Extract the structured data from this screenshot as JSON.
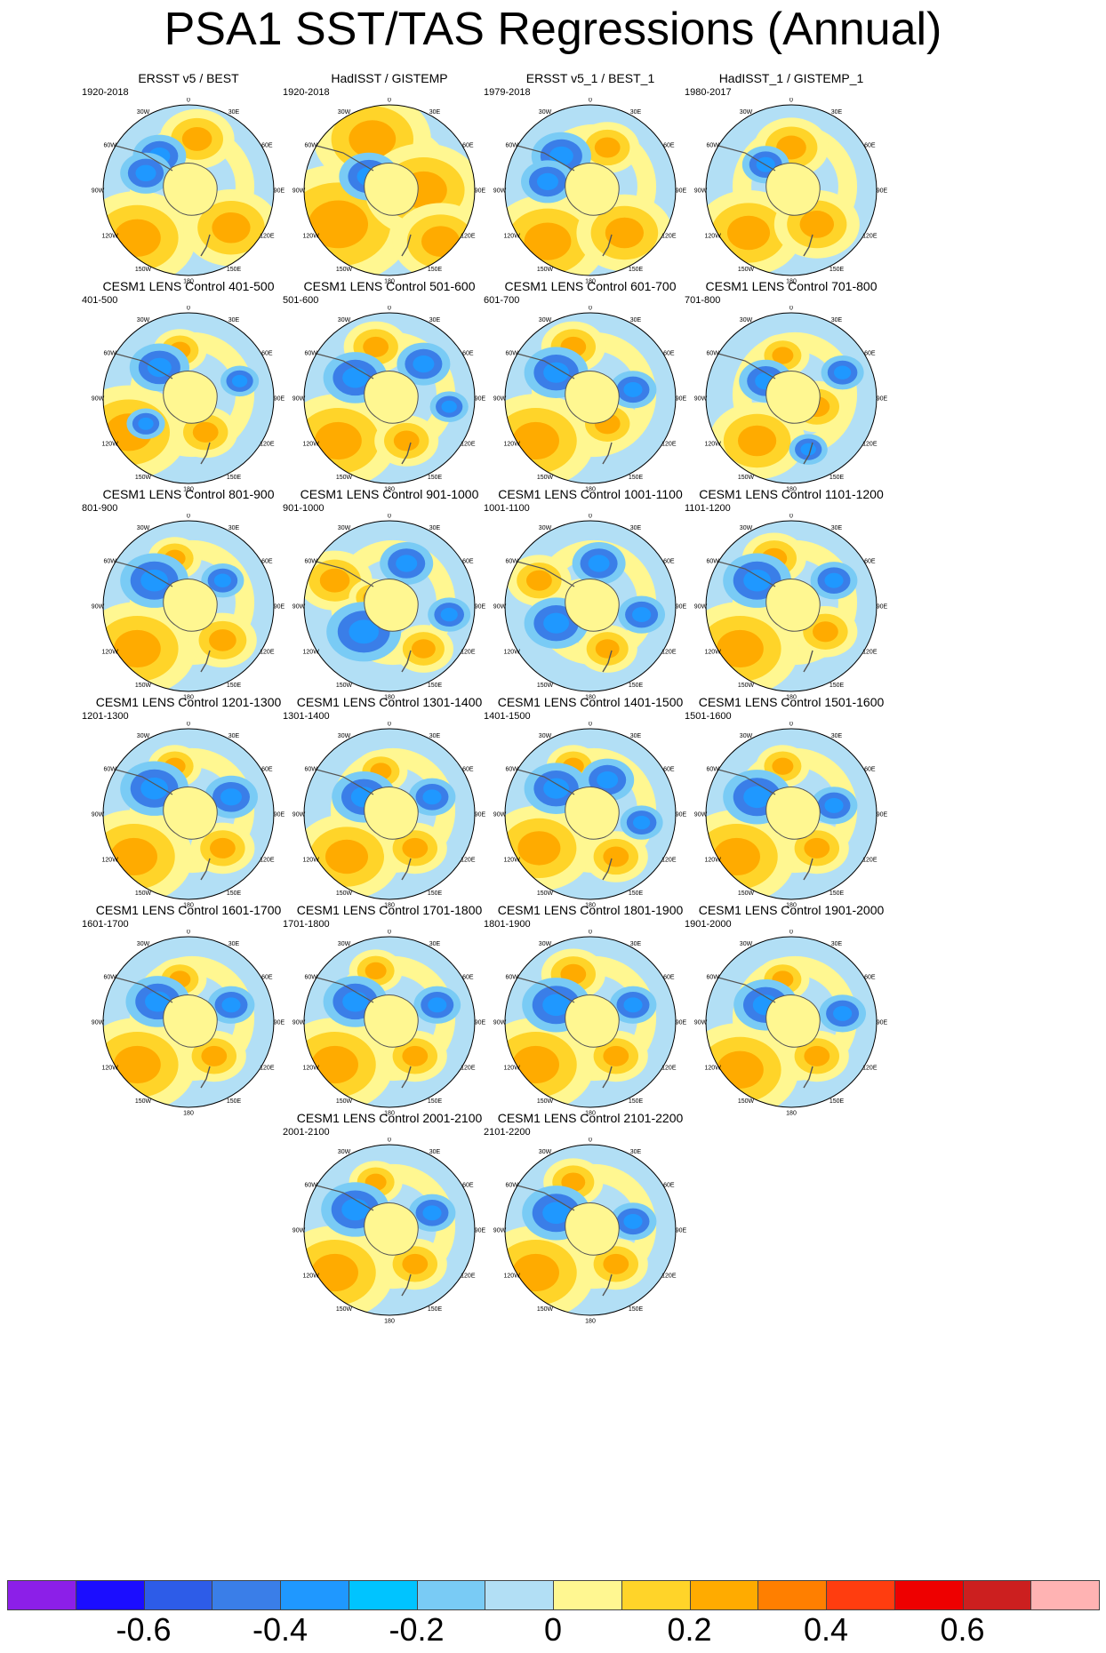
{
  "title": "PSA1 SST/TAS Regressions (Annual)",
  "lon_labels": [
    "0",
    "30E",
    "60E",
    "90E",
    "120E",
    "150E",
    "180",
    "150W",
    "120W",
    "90W",
    "60W",
    "30W"
  ],
  "panels": [
    {
      "title": "ERSST v5 / BEST",
      "period": "1920-2018",
      "lows": [
        [
          0.33,
          0.3,
          0.25
        ],
        [
          0.25,
          0.4,
          0.24
        ]
      ],
      "highs": [
        [
          0.2,
          0.78,
          0.55
        ],
        [
          0.75,
          0.72,
          0.45
        ],
        [
          0.55,
          0.2,
          0.35
        ]
      ]
    },
    {
      "title": "HadISST / GISTEMP",
      "period": "1920-2018",
      "lows": [
        [
          0.38,
          0.42,
          0.28
        ]
      ],
      "highs": [
        [
          0.2,
          0.7,
          0.7
        ],
        [
          0.4,
          0.2,
          0.55
        ],
        [
          0.7,
          0.5,
          0.55
        ],
        [
          0.8,
          0.8,
          0.45
        ]
      ]
    },
    {
      "title": "ERSST v5_1 / BEST_1",
      "period": "1979-2018",
      "lows": [
        [
          0.33,
          0.3,
          0.28
        ],
        [
          0.25,
          0.45,
          0.25
        ]
      ],
      "highs": [
        [
          0.25,
          0.8,
          0.55
        ],
        [
          0.7,
          0.75,
          0.45
        ],
        [
          0.6,
          0.25,
          0.3
        ]
      ]
    },
    {
      "title": "HadISST_1 / GISTEMP_1",
      "period": "1980-2017",
      "lows": [
        [
          0.35,
          0.35,
          0.22
        ]
      ],
      "highs": [
        [
          0.25,
          0.75,
          0.5
        ],
        [
          0.65,
          0.7,
          0.4
        ],
        [
          0.5,
          0.25,
          0.35
        ]
      ]
    },
    {
      "title": "CESM1 LENS Control 401-500",
      "period": "401-500",
      "lows": [
        [
          0.33,
          0.32,
          0.28
        ],
        [
          0.25,
          0.65,
          0.18
        ],
        [
          0.8,
          0.4,
          0.18
        ]
      ],
      "highs": [
        [
          0.15,
          0.7,
          0.55
        ],
        [
          0.45,
          0.22,
          0.25
        ],
        [
          0.6,
          0.7,
          0.3
        ]
      ]
    },
    {
      "title": "CESM1 LENS Control 501-600",
      "period": "501-600",
      "lows": [
        [
          0.3,
          0.38,
          0.3
        ],
        [
          0.7,
          0.3,
          0.25
        ],
        [
          0.85,
          0.55,
          0.18
        ]
      ],
      "highs": [
        [
          0.2,
          0.75,
          0.55
        ],
        [
          0.42,
          0.2,
          0.3
        ],
        [
          0.6,
          0.75,
          0.3
        ]
      ]
    },
    {
      "title": "CESM1 LENS Control 601-700",
      "period": "601-700",
      "lows": [
        [
          0.3,
          0.35,
          0.3
        ],
        [
          0.75,
          0.45,
          0.22
        ]
      ],
      "highs": [
        [
          0.18,
          0.75,
          0.55
        ],
        [
          0.4,
          0.2,
          0.3
        ],
        [
          0.6,
          0.65,
          0.3
        ]
      ]
    },
    {
      "title": "CESM1 LENS Control 701-800",
      "period": "701-800",
      "lows": [
        [
          0.35,
          0.4,
          0.25
        ],
        [
          0.8,
          0.35,
          0.2
        ],
        [
          0.6,
          0.8,
          0.18
        ]
      ],
      "highs": [
        [
          0.3,
          0.75,
          0.45
        ],
        [
          0.45,
          0.25,
          0.25
        ],
        [
          0.65,
          0.55,
          0.3
        ]
      ]
    },
    {
      "title": "CESM1 LENS Control 801-900",
      "period": "801-900",
      "lows": [
        [
          0.3,
          0.35,
          0.32
        ],
        [
          0.7,
          0.35,
          0.2
        ]
      ],
      "highs": [
        [
          0.2,
          0.75,
          0.55
        ],
        [
          0.42,
          0.22,
          0.25
        ],
        [
          0.7,
          0.7,
          0.32
        ]
      ]
    },
    {
      "title": "CESM1 LENS Control 901-1000",
      "period": "901-1000",
      "lows": [
        [
          0.35,
          0.65,
          0.35
        ],
        [
          0.6,
          0.25,
          0.25
        ],
        [
          0.85,
          0.55,
          0.2
        ]
      ],
      "highs": [
        [
          0.18,
          0.35,
          0.35
        ],
        [
          0.4,
          0.45,
          0.22
        ],
        [
          0.7,
          0.75,
          0.28
        ]
      ]
    },
    {
      "title": "CESM1 LENS Control 1001-1100",
      "period": "1001-1100",
      "lows": [
        [
          0.3,
          0.6,
          0.3
        ],
        [
          0.55,
          0.25,
          0.25
        ],
        [
          0.8,
          0.55,
          0.22
        ]
      ],
      "highs": [
        [
          0.2,
          0.35,
          0.3
        ],
        [
          0.45,
          0.45,
          0.22
        ],
        [
          0.6,
          0.75,
          0.28
        ]
      ]
    },
    {
      "title": "CESM1 LENS Control 1101-1200",
      "period": "1101-1200",
      "lows": [
        [
          0.3,
          0.35,
          0.32
        ],
        [
          0.75,
          0.35,
          0.22
        ]
      ],
      "highs": [
        [
          0.2,
          0.75,
          0.55
        ],
        [
          0.4,
          0.22,
          0.3
        ],
        [
          0.7,
          0.65,
          0.3
        ]
      ]
    },
    {
      "title": "CESM1 LENS Control 1201-1300",
      "period": "1201-1300",
      "lows": [
        [
          0.3,
          0.35,
          0.32
        ],
        [
          0.75,
          0.4,
          0.25
        ]
      ],
      "highs": [
        [
          0.18,
          0.75,
          0.55
        ],
        [
          0.42,
          0.22,
          0.25
        ],
        [
          0.7,
          0.7,
          0.3
        ]
      ]
    },
    {
      "title": "CESM1 LENS Control 1301-1400",
      "period": "1301-1400",
      "lows": [
        [
          0.35,
          0.4,
          0.3
        ],
        [
          0.75,
          0.4,
          0.22
        ]
      ],
      "highs": [
        [
          0.25,
          0.75,
          0.5
        ],
        [
          0.45,
          0.25,
          0.25
        ],
        [
          0.65,
          0.7,
          0.3
        ]
      ]
    },
    {
      "title": "CESM1 LENS Control 1401-1500",
      "period": "1401-1500",
      "lows": [
        [
          0.3,
          0.35,
          0.3
        ],
        [
          0.6,
          0.3,
          0.25
        ],
        [
          0.8,
          0.55,
          0.2
        ]
      ],
      "highs": [
        [
          0.2,
          0.7,
          0.5
        ],
        [
          0.4,
          0.22,
          0.25
        ],
        [
          0.65,
          0.75,
          0.3
        ]
      ]
    },
    {
      "title": "CESM1 LENS Control 1501-1600",
      "period": "1501-1600",
      "lows": [
        [
          0.3,
          0.4,
          0.32
        ],
        [
          0.75,
          0.45,
          0.22
        ]
      ],
      "highs": [
        [
          0.18,
          0.75,
          0.55
        ],
        [
          0.45,
          0.22,
          0.25
        ],
        [
          0.65,
          0.7,
          0.3
        ]
      ]
    },
    {
      "title": "CESM1 LENS Control 1601-1700",
      "period": "1601-1700",
      "lows": [
        [
          0.32,
          0.38,
          0.3
        ],
        [
          0.75,
          0.4,
          0.22
        ]
      ],
      "highs": [
        [
          0.2,
          0.75,
          0.55
        ],
        [
          0.45,
          0.25,
          0.25
        ],
        [
          0.65,
          0.7,
          0.3
        ]
      ]
    },
    {
      "title": "CESM1 LENS Control 1701-1800",
      "period": "1701-1800",
      "lows": [
        [
          0.3,
          0.38,
          0.3
        ],
        [
          0.78,
          0.4,
          0.22
        ]
      ],
      "highs": [
        [
          0.18,
          0.75,
          0.55
        ],
        [
          0.42,
          0.2,
          0.25
        ],
        [
          0.65,
          0.7,
          0.3
        ]
      ]
    },
    {
      "title": "CESM1 LENS Control 1801-1900",
      "period": "1801-1900",
      "lows": [
        [
          0.3,
          0.4,
          0.32
        ],
        [
          0.75,
          0.4,
          0.22
        ]
      ],
      "highs": [
        [
          0.18,
          0.75,
          0.55
        ],
        [
          0.4,
          0.22,
          0.3
        ],
        [
          0.65,
          0.7,
          0.3
        ]
      ]
    },
    {
      "title": "CESM1 LENS Control 1901-2000",
      "period": "1901-2000",
      "lows": [
        [
          0.35,
          0.4,
          0.3
        ],
        [
          0.8,
          0.45,
          0.22
        ]
      ],
      "highs": [
        [
          0.2,
          0.78,
          0.55
        ],
        [
          0.45,
          0.25,
          0.25
        ],
        [
          0.65,
          0.7,
          0.3
        ]
      ]
    },
    {
      "title": "CESM1 LENS Control 2001-2100",
      "period": "2001-2100",
      "lows": [
        [
          0.3,
          0.38,
          0.32
        ],
        [
          0.75,
          0.4,
          0.22
        ]
      ],
      "highs": [
        [
          0.18,
          0.75,
          0.55
        ],
        [
          0.42,
          0.22,
          0.25
        ],
        [
          0.65,
          0.7,
          0.3
        ]
      ]
    },
    {
      "title": "CESM1 LENS Control 2101-2200",
      "period": "2101-2200",
      "lows": [
        [
          0.3,
          0.4,
          0.32
        ],
        [
          0.75,
          0.45,
          0.22
        ]
      ],
      "highs": [
        [
          0.18,
          0.75,
          0.55
        ],
        [
          0.4,
          0.22,
          0.28
        ],
        [
          0.65,
          0.7,
          0.3
        ]
      ]
    }
  ],
  "colorbar": {
    "colors": [
      "#8c1fe8",
      "#1b0dff",
      "#2d5ce8",
      "#3a7ee8",
      "#1f98ff",
      "#00c4ff",
      "#79cbf5",
      "#b2dff5",
      "#fff791",
      "#ffd429",
      "#ffab00",
      "#ff7f00",
      "#ff3d0f",
      "#ee0000",
      "#cc1f1f",
      "#ffb3b3"
    ],
    "labels": [
      {
        "text": "-0.6",
        "boundary": 2
      },
      {
        "text": "-0.4",
        "boundary": 4
      },
      {
        "text": "-0.2",
        "boundary": 6
      },
      {
        "text": "0",
        "boundary": 8
      },
      {
        "text": "0.2",
        "boundary": 10
      },
      {
        "text": "0.4",
        "boundary": 12
      },
      {
        "text": "0.6",
        "boundary": 14
      }
    ]
  }
}
